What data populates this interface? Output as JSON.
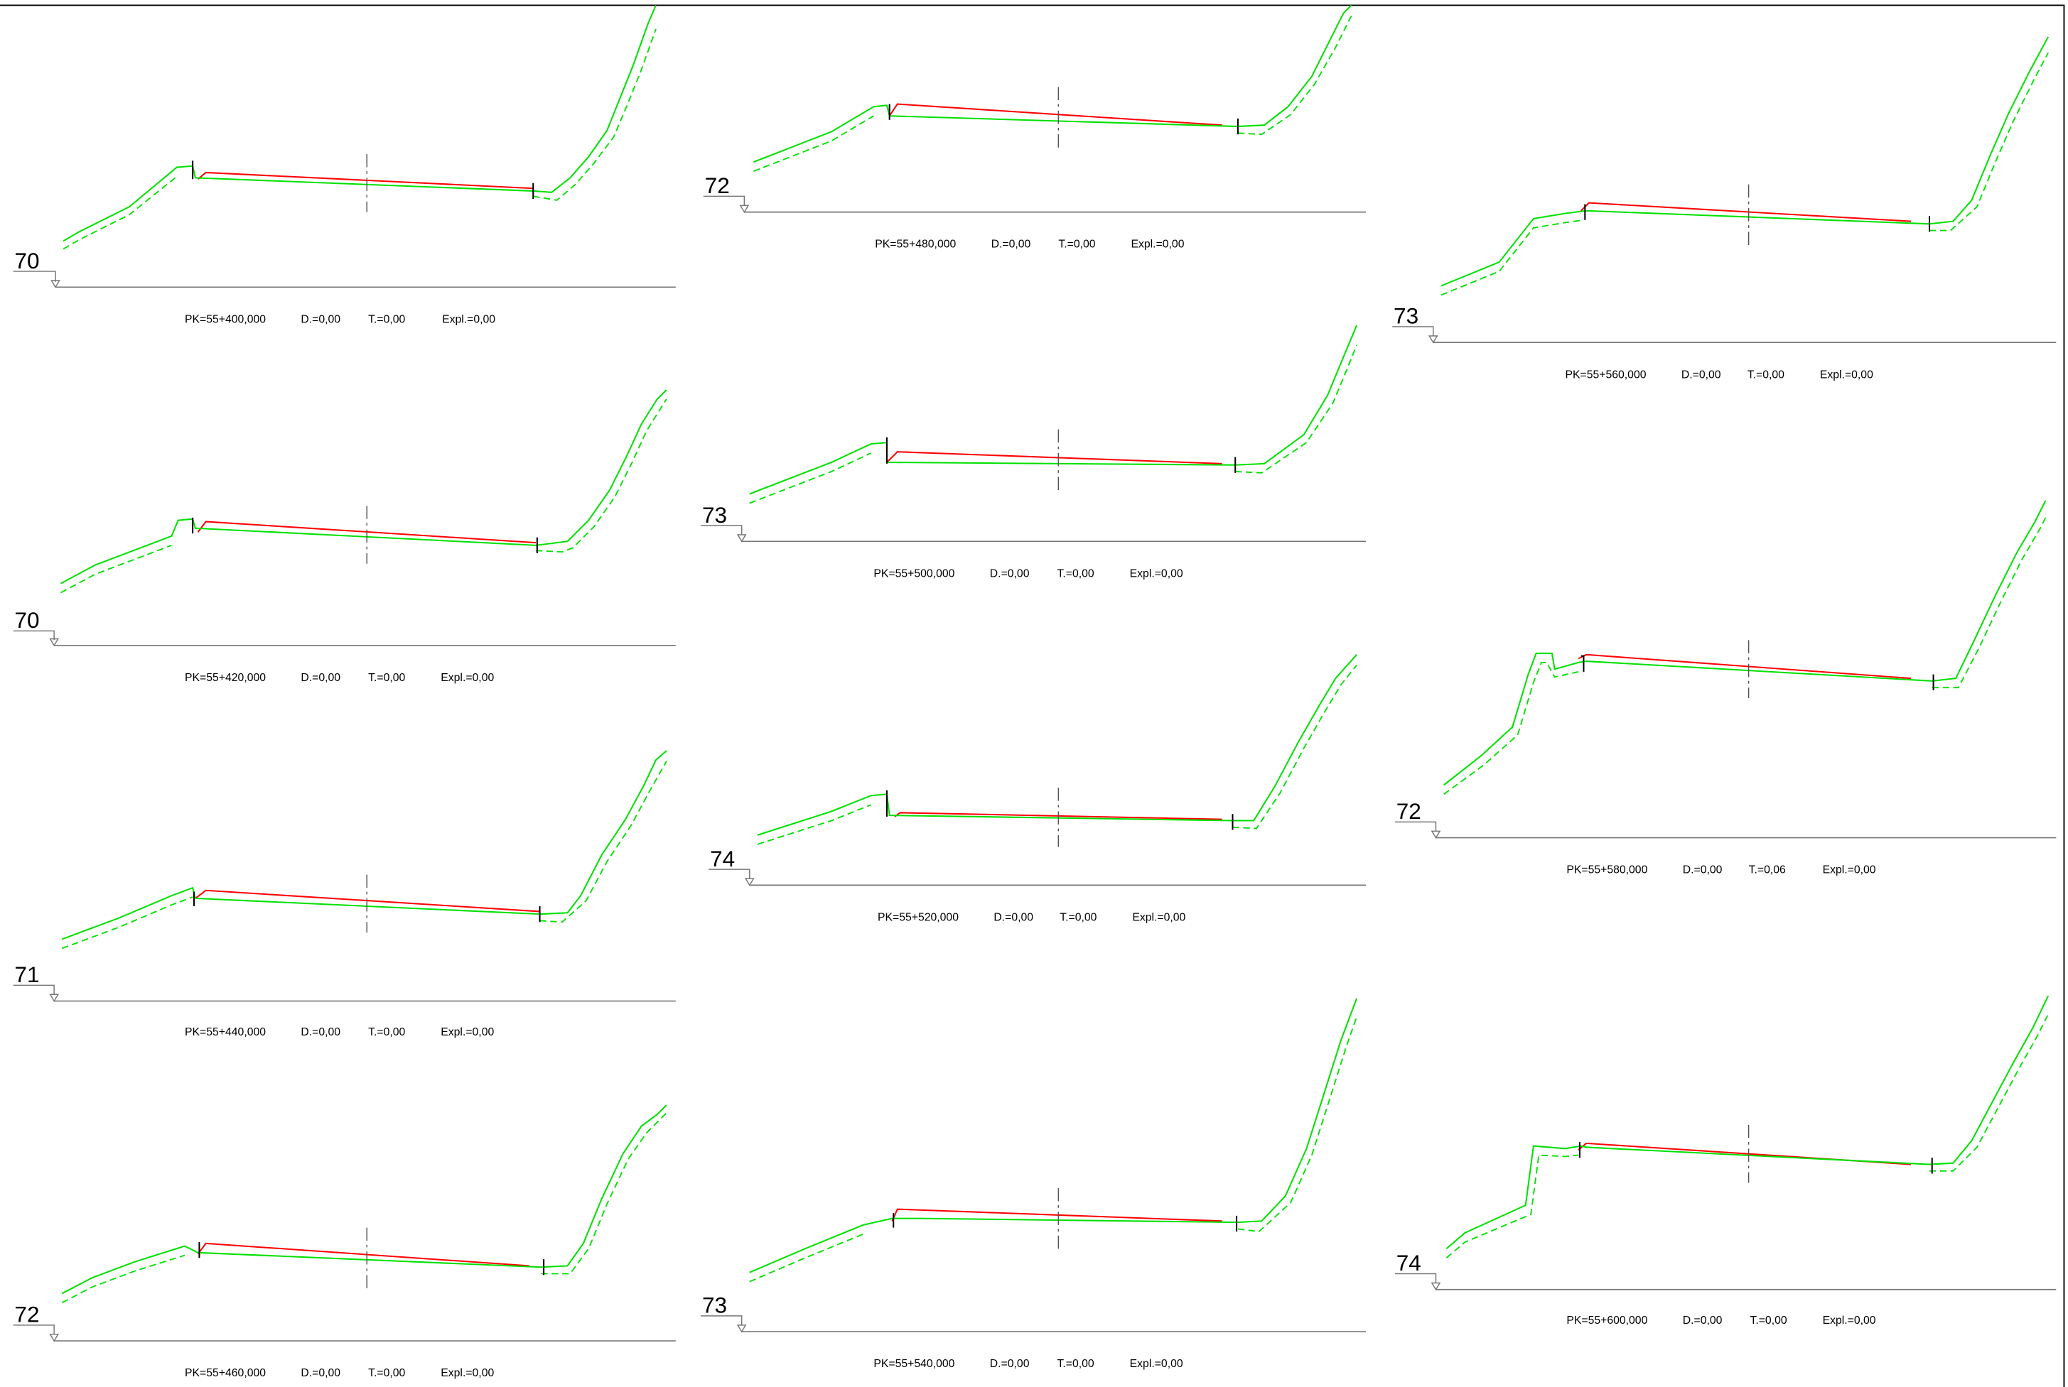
{
  "colors": {
    "terrain": "#ff0000",
    "design": "#00e000",
    "axis": "#555555",
    "datum": "#777777",
    "frame": "#000000",
    "text": "#000000"
  },
  "sections": [
    {
      "datum": "70",
      "pk": "PK=55+400,000",
      "d": "D.=0,00",
      "t": "T.=0,00",
      "expl": "Expl.=0,00"
    },
    {
      "datum": "70",
      "pk": "PK=55+420,000",
      "d": "D.=0,00",
      "t": "T.=0,00",
      "expl": "Expl.=0,00"
    },
    {
      "datum": "71",
      "pk": "PK=55+440,000",
      "d": "D.=0,00",
      "t": "T.=0,00",
      "expl": "Expl.=0,00"
    },
    {
      "datum": "72",
      "pk": "PK=55+460,000",
      "d": "D.=0,00",
      "t": "T.=0,00",
      "expl": "Expl.=0,00"
    },
    {
      "datum": "72",
      "pk": "PK=55+480,000",
      "d": "D.=0,00",
      "t": "T.=0,00",
      "expl": "Expl.=0,00"
    },
    {
      "datum": "73",
      "pk": "PK=55+500,000",
      "d": "D.=0,00",
      "t": "T.=0,00",
      "expl": "Expl.=0,00"
    },
    {
      "datum": "74",
      "pk": "PK=55+520,000",
      "d": "D.=0,00",
      "t": "T.=0,00",
      "expl": "Expl.=0,00"
    },
    {
      "datum": "73",
      "pk": "PK=55+540,000",
      "d": "D.=0,00",
      "t": "T.=0,00",
      "expl": "Expl.=0,00"
    },
    {
      "datum": "73",
      "pk": "PK=55+560,000",
      "d": "D.=0,00",
      "t": "T.=0,00",
      "expl": "Expl.=0,00"
    },
    {
      "datum": "72",
      "pk": "PK=55+580,000",
      "d": "D.=0,00",
      "t": "T.=0,06",
      "expl": "Expl.=0,00"
    },
    {
      "datum": "74",
      "pk": "PK=55+600,000",
      "d": "D.=0,00",
      "t": "T.=0,00",
      "expl": "Expl.=0,00"
    }
  ]
}
